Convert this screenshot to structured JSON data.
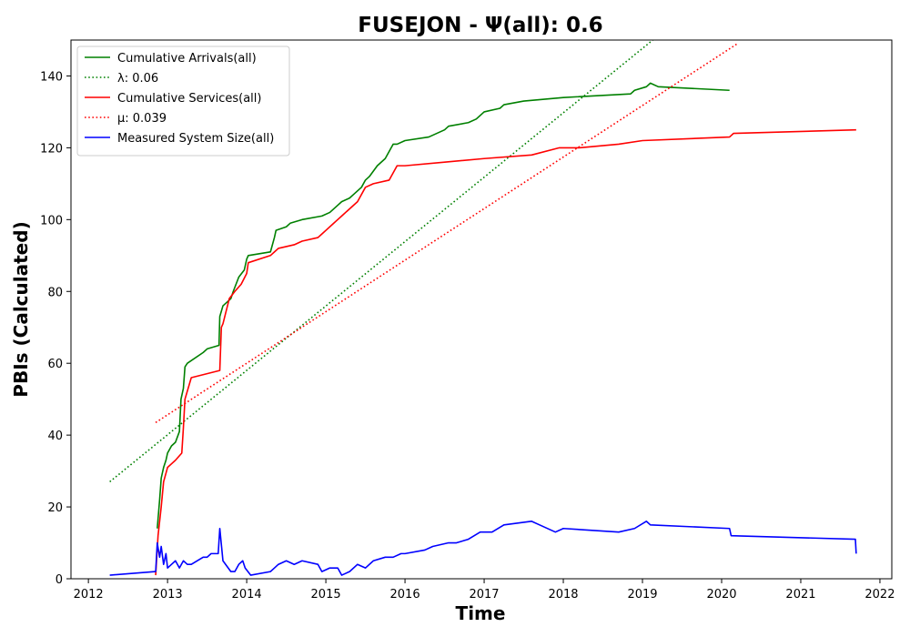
{
  "chart_data": {
    "type": "line",
    "title": "FUSEJON -  Ψ(all): 0.6",
    "xlabel": "Time",
    "ylabel": "PBIs (Calculated)",
    "xlim": [
      2011.78,
      2022.15
    ],
    "ylim": [
      0,
      150
    ],
    "xticks": [
      2012,
      2013,
      2014,
      2015,
      2016,
      2017,
      2018,
      2019,
      2020,
      2021,
      2022
    ],
    "yticks": [
      0,
      20,
      40,
      60,
      80,
      100,
      120,
      140
    ],
    "grid": false,
    "legend_position": "top-left",
    "series": [
      {
        "name": "Cumulative Arrivals(all)",
        "color": "#008000",
        "style": "solid",
        "x": [
          2012.87,
          2012.9,
          2012.92,
          2012.95,
          2012.98,
          2013.0,
          2013.05,
          2013.1,
          2013.15,
          2013.17,
          2013.2,
          2013.22,
          2013.25,
          2013.45,
          2013.5,
          2013.65,
          2013.66,
          2013.7,
          2013.8,
          2013.83,
          2013.9,
          2013.97,
          2014.0,
          2014.02,
          2014.3,
          2014.35,
          2014.37,
          2014.5,
          2014.55,
          2014.7,
          2014.95,
          2015.05,
          2015.15,
          2015.2,
          2015.3,
          2015.35,
          2015.45,
          2015.5,
          2015.55,
          2015.65,
          2015.75,
          2015.8,
          2015.85,
          2015.9,
          2016.0,
          2016.3,
          2016.5,
          2016.55,
          2016.8,
          2016.9,
          2017.0,
          2017.2,
          2017.25,
          2017.5,
          2018.0,
          2018.85,
          2018.9,
          2019.05,
          2019.1,
          2019.2,
          2020.1
        ],
        "y": [
          14,
          22,
          28,
          31,
          33,
          35,
          37,
          38,
          41,
          50,
          53,
          59,
          60,
          63,
          64,
          65,
          73,
          76,
          78,
          80,
          84,
          86,
          89,
          90,
          91,
          95,
          97,
          98,
          99,
          100,
          101,
          102,
          104,
          105,
          106,
          107,
          109,
          111,
          112,
          115,
          117,
          119,
          121,
          121,
          122,
          123,
          125,
          126,
          127,
          128,
          130,
          131,
          132,
          133,
          134,
          135,
          136,
          137,
          138,
          137,
          136
        ]
      },
      {
        "name": "λ: 0.06",
        "color": "#008000",
        "style": "dotted",
        "x": [
          2012.27,
          2019.13
        ],
        "y": [
          27,
          150
        ]
      },
      {
        "name": "Cumulative Services(all)",
        "color": "#ff0000",
        "style": "solid",
        "x": [
          2012.85,
          2012.88,
          2012.92,
          2012.95,
          2013.0,
          2013.05,
          2013.1,
          2013.18,
          2013.2,
          2013.22,
          2013.3,
          2013.66,
          2013.68,
          2013.7,
          2013.78,
          2013.85,
          2013.93,
          2014.0,
          2014.02,
          2014.3,
          2014.35,
          2014.4,
          2014.6,
          2014.7,
          2014.9,
          2014.95,
          2015.0,
          2015.1,
          2015.15,
          2015.2,
          2015.4,
          2015.5,
          2015.6,
          2015.8,
          2015.85,
          2015.9,
          2016.0,
          2016.5,
          2017.0,
          2017.6,
          2017.95,
          2018.0,
          2018.2,
          2018.7,
          2019.0,
          2020.1,
          2020.15,
          2021.7
        ],
        "y": [
          1,
          12,
          20,
          27,
          31,
          32,
          33,
          35,
          42,
          50,
          56,
          58,
          70,
          71,
          78,
          80,
          82,
          85,
          88,
          90,
          91,
          92,
          93,
          94,
          95,
          96,
          97,
          99,
          100,
          101,
          105,
          109,
          110,
          111,
          113,
          115,
          115,
          116,
          117,
          118,
          120,
          120,
          120,
          121,
          122,
          123,
          124,
          125
        ]
      },
      {
        "name": "μ: 0.039",
        "color": "#ff0000",
        "style": "dotted",
        "x": [
          2012.85,
          2020.2
        ],
        "y": [
          43.5,
          149
        ]
      },
      {
        "name": "Measured System Size(all)",
        "color": "#0000ff",
        "style": "solid",
        "x": [
          2012.27,
          2012.85,
          2012.87,
          2012.9,
          2012.92,
          2012.95,
          2012.98,
          2013.0,
          2013.05,
          2013.1,
          2013.15,
          2013.2,
          2013.25,
          2013.3,
          2013.45,
          2013.5,
          2013.55,
          2013.64,
          2013.66,
          2013.7,
          2013.8,
          2013.85,
          2013.9,
          2013.95,
          2013.98,
          2014.05,
          2014.3,
          2014.35,
          2014.4,
          2014.5,
          2014.6,
          2014.7,
          2014.9,
          2014.95,
          2015.05,
          2015.15,
          2015.2,
          2015.3,
          2015.4,
          2015.5,
          2015.6,
          2015.75,
          2015.85,
          2015.95,
          2016.0,
          2016.25,
          2016.35,
          2016.55,
          2016.65,
          2016.8,
          2016.95,
          2017.1,
          2017.25,
          2017.6,
          2017.7,
          2017.9,
          2018.0,
          2018.7,
          2018.9,
          2019.05,
          2019.1,
          2020.1,
          2020.12,
          2021.69,
          2021.7
        ],
        "y": [
          1,
          2,
          10,
          6,
          9,
          4,
          7,
          3,
          4,
          5,
          3,
          5,
          4,
          4,
          6,
          6,
          7,
          7,
          14,
          5,
          2,
          2,
          4,
          5,
          3,
          1,
          2,
          3,
          4,
          5,
          4,
          5,
          4,
          2,
          3,
          3,
          1,
          2,
          4,
          3,
          5,
          6,
          6,
          7,
          7,
          8,
          9,
          10,
          10,
          11,
          13,
          13,
          15,
          16,
          15,
          13,
          14,
          13,
          14,
          16,
          15,
          14,
          12,
          11,
          7
        ]
      }
    ]
  }
}
